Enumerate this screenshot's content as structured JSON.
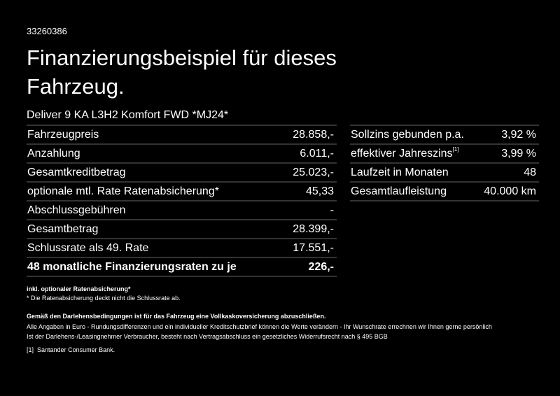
{
  "id": "33260386",
  "title": "Finanzierungsbeispiel für dieses Fahrzeug.",
  "model": "Deliver 9 KA L3H2 Komfort FWD *MJ24*",
  "left_rows": [
    {
      "label": "Fahrzeugpreis",
      "value": "28.858,-"
    },
    {
      "label": "Anzahlung",
      "value": "6.011,-"
    },
    {
      "label": "Gesamtkreditbetrag",
      "value": "25.023,-"
    },
    {
      "label": "optionale mtl. Rate Ratenabsicherung*",
      "value": "45,33"
    },
    {
      "label": "Abschlussgebühren",
      "value": "-"
    },
    {
      "label": "Gesamtbetrag",
      "value": "28.399,-"
    },
    {
      "label": "Schlussrate als 49. Rate",
      "value": "17.551,-"
    },
    {
      "label": "48 monatliche Finanzierungsraten zu je",
      "value": "226,-"
    }
  ],
  "right_rows": [
    {
      "label": "Sollzins gebunden p.a.",
      "value": "3,92 %"
    },
    {
      "label": "effektiver Jahreszins",
      "sup": "[1]",
      "value": "3,99 %"
    },
    {
      "label": "Laufzeit in Monaten",
      "value": "48"
    },
    {
      "label": "Gesamtlaufleistung",
      "value": "40.000 km"
    }
  ],
  "footnotes": {
    "f1": "inkl. optionaler Ratenabsicherung*",
    "f2": "* Die Ratenabsicherung deckt nicht die Schlussrate ab.",
    "f3": "Gemäß den Darlehensbedingungen ist für das Fahrzeug eine Vollkaskoversicherung abzuschließen.",
    "f4": "Alle Angaben in Euro - Rundungsdifferenzen und ein individueller Kreditschutzbrief können die Werte verändern - Ihr Wunschrate errechnen wir Ihnen gerne persönlich",
    "f5": "Ist der Darlehens-/Leasingnehmer Verbraucher, besteht nach Vertragsabschluss ein gesetzliches Widerrufsrecht nach § 495 BGB",
    "f6_mark": "[1]",
    "f6": "Santander Consumer Bank."
  }
}
